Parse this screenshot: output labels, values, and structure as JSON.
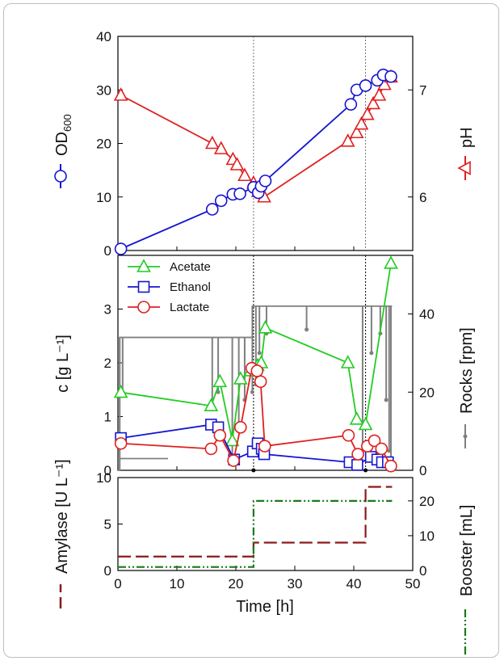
{
  "chart_data": [
    {
      "type": "line",
      "panel": "top",
      "xlabel": "",
      "ylabel": "OD600",
      "y2label": "pH",
      "xlim": [
        0,
        50
      ],
      "ylim": [
        0,
        40
      ],
      "y2lim": [
        5.5,
        7.5
      ],
      "y_ticks": [
        "0",
        "10",
        "20",
        "30",
        "40"
      ],
      "y2_ticks": [
        "6",
        "7"
      ],
      "vlines": [
        23,
        42
      ],
      "series": [
        {
          "axis": "left",
          "color": "#1515d0",
          "marker": "circle",
          "x": [
            0.5,
            16,
            17.5,
            19.5,
            20.7,
            23,
            23.8,
            24.3,
            25,
            39.5,
            40.5,
            42,
            44,
            45,
            46.3
          ],
          "y": [
            0.3,
            7.7,
            9.3,
            10.5,
            10.6,
            11.8,
            10.8,
            12,
            13,
            27.3,
            30,
            30.8,
            31.8,
            32.8,
            32.5
          ]
        },
        {
          "axis": "right",
          "color": "#e02020",
          "marker": "triangle",
          "x": [
            0.5,
            16,
            17.5,
            19.5,
            20.2,
            21.5,
            23,
            23.8,
            24.8,
            39,
            40.5,
            41.3,
            42.3,
            43.3,
            44.3,
            45.2,
            46.3
          ],
          "y": [
            6.95,
            6.5,
            6.45,
            6.35,
            6.3,
            6.2,
            6.13,
            6.05,
            6.0,
            6.52,
            6.6,
            6.68,
            6.77,
            6.87,
            6.95,
            7.05,
            7.12
          ]
        }
      ]
    },
    {
      "type": "line",
      "panel": "middle",
      "ylabel": "c [g L⁻¹]",
      "y2label": "Rocks [rpm]",
      "xlim": [
        0,
        50
      ],
      "ylim": [
        0,
        4
      ],
      "y2lim": [
        0,
        55
      ],
      "y_ticks": [
        "0",
        "1",
        "2",
        "3"
      ],
      "y2_ticks": [
        "0",
        "20",
        "40"
      ],
      "vlines": [
        23,
        42
      ],
      "legend": [
        "Acetate",
        "Ethanol",
        "Lactate"
      ],
      "series": [
        {
          "name": "Acetate",
          "color": "#22cc22",
          "marker": "triangle",
          "x": [
            0.5,
            15.8,
            17.3,
            19.4,
            20.8,
            22.5,
            23.7,
            24.3,
            25,
            39,
            40.5,
            42,
            46.3
          ],
          "y": [
            1.45,
            1.2,
            1.65,
            0.55,
            1.7,
            1.85,
            1.95,
            2.0,
            2.65,
            2.0,
            0.95,
            0.85,
            3.85
          ]
        },
        {
          "name": "Ethanol",
          "color": "#1515d0",
          "marker": "square",
          "x": [
            0.5,
            15.8,
            17,
            19.7,
            22.9,
            23.7,
            24.4,
            24.8,
            39.3,
            40.6,
            42.9,
            44,
            44.8,
            45.8
          ],
          "y": [
            0.6,
            0.85,
            0.8,
            0.2,
            0.35,
            0.5,
            0.4,
            0.3,
            0.15,
            0.1,
            0.25,
            0.2,
            0.15,
            0.15
          ]
        },
        {
          "name": "Lactate",
          "color": "#e02020",
          "marker": "circle",
          "x": [
            0.5,
            15.8,
            17.3,
            19.6,
            20.8,
            22.7,
            23.6,
            24.2,
            24.9,
            39.1,
            40.7,
            42.3,
            43.5,
            44.7,
            46.3
          ],
          "y": [
            0.5,
            0.4,
            0.65,
            0.18,
            0.8,
            1.9,
            1.85,
            1.65,
            0.45,
            0.65,
            0.3,
            0.45,
            0.55,
            0.4,
            0.08
          ]
        },
        {
          "name": "Rocks",
          "axis": "right",
          "color": "#808080",
          "marker": "dot",
          "step": true,
          "x": [
            0,
            0.3,
            0.3,
            22.8,
            22.8,
            46.5
          ],
          "y": [
            0,
            0,
            34,
            34,
            42,
            42
          ]
        },
        {
          "name": "Rocks base",
          "axis": "right",
          "color": "#808080",
          "marker": "none",
          "step": true,
          "x": [
            0,
            8.5
          ],
          "y": [
            3,
            3
          ]
        }
      ]
    },
    {
      "type": "line",
      "panel": "bottom",
      "xlabel": "Time [h]",
      "ylabel": "Amylase [U L⁻¹]",
      "y2label": "Booster [mL]",
      "xlim": [
        0,
        50
      ],
      "x_ticks": [
        "0",
        "10",
        "20",
        "30",
        "40",
        "50"
      ],
      "ylim": [
        0,
        10
      ],
      "y2lim": [
        0,
        26.7
      ],
      "y_ticks": [
        "0",
        "5",
        "10"
      ],
      "y2_ticks": [
        "0",
        "10",
        "20"
      ],
      "series": [
        {
          "name": "Amylase",
          "color": "#8b1a1a",
          "dash": "dashed",
          "step": true,
          "x": [
            0,
            23,
            23,
            42,
            42,
            46.5
          ],
          "y": [
            1.5,
            1.5,
            3,
            3,
            9,
            9
          ]
        },
        {
          "name": "Booster",
          "axis": "right",
          "color": "#1a7a1a",
          "dash": "dashdotdot",
          "step": true,
          "x": [
            0,
            23,
            23,
            46.5
          ],
          "y": [
            1,
            1,
            20,
            20
          ]
        }
      ]
    }
  ]
}
